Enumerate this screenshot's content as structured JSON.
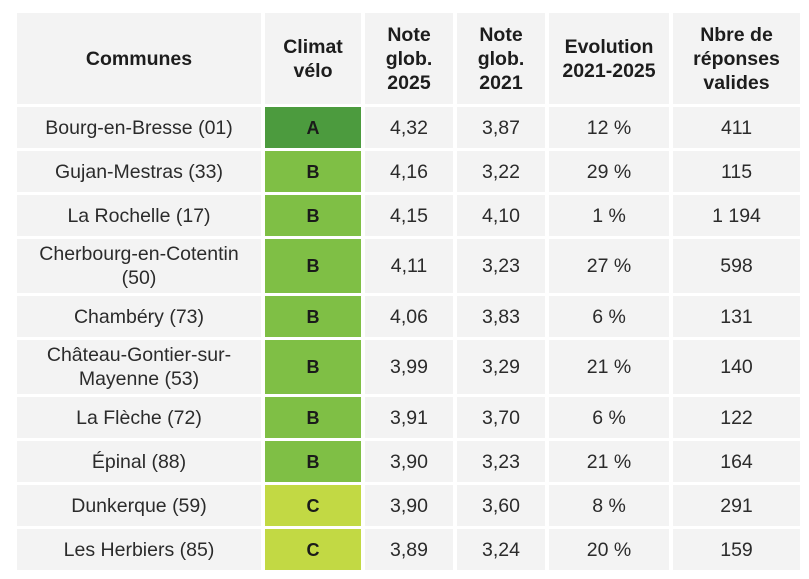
{
  "chart_data": {
    "type": "table",
    "columns": [
      "Communes",
      "Climat vélo",
      "Note glob. 2025",
      "Note glob. 2021",
      "Evolution 2021-2025",
      "Nbre de réponses valides"
    ],
    "rows": [
      {
        "commune": "Bourg-en-Bresse (01)",
        "climat": "A",
        "note2025": "4,32",
        "note2021": "3,87",
        "evolution": "12 %",
        "reponses": "411"
      },
      {
        "commune": "Gujan-Mestras (33)",
        "climat": "B",
        "note2025": "4,16",
        "note2021": "3,22",
        "evolution": "29 %",
        "reponses": "115"
      },
      {
        "commune": "La Rochelle (17)",
        "climat": "B",
        "note2025": "4,15",
        "note2021": "4,10",
        "evolution": "1 %",
        "reponses": "1 194"
      },
      {
        "commune": "Cherbourg-en-Cotentin (50)",
        "climat": "B",
        "note2025": "4,11",
        "note2021": "3,23",
        "evolution": "27 %",
        "reponses": "598"
      },
      {
        "commune": "Chambéry (73)",
        "climat": "B",
        "note2025": "4,06",
        "note2021": "3,83",
        "evolution": "6 %",
        "reponses": "131"
      },
      {
        "commune": "Château-Gontier-sur-Mayenne (53)",
        "climat": "B",
        "note2025": "3,99",
        "note2021": "3,29",
        "evolution": "21 %",
        "reponses": "140"
      },
      {
        "commune": "La Flèche (72)",
        "climat": "B",
        "note2025": "3,91",
        "note2021": "3,70",
        "evolution": "6 %",
        "reponses": "122"
      },
      {
        "commune": "Épinal (88)",
        "climat": "B",
        "note2025": "3,90",
        "note2021": "3,23",
        "evolution": "21 %",
        "reponses": "164"
      },
      {
        "commune": "Dunkerque (59)",
        "climat": "C",
        "note2025": "3,90",
        "note2021": "3,60",
        "evolution": "8 %",
        "reponses": "291"
      },
      {
        "commune": "Les Herbiers (85)",
        "climat": "C",
        "note2025": "3,89",
        "note2021": "3,24",
        "evolution": "20 %",
        "reponses": "159"
      }
    ]
  },
  "colors": {
    "A": "#4c9b3e",
    "B": "#7fbf45",
    "C": "#c2d944",
    "header_bg": "#f3f3f3"
  }
}
